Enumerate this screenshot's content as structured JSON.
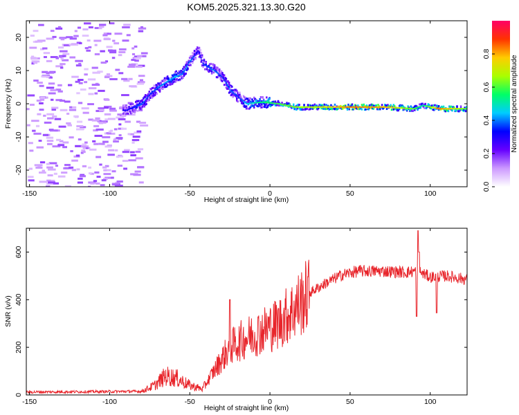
{
  "title": "KOM5.2025.321.13.30.G20",
  "chart_data": [
    {
      "type": "heatmap",
      "name": "spectrogram",
      "xlabel": "Height of straight line (km)",
      "ylabel": "Frequency (Hz)",
      "xlim": [
        -152,
        123
      ],
      "ylim": [
        -25,
        25
      ],
      "xticks": [
        "-150",
        "-100",
        "-50",
        "0",
        "50",
        "100"
      ],
      "yticks": [
        "-20",
        "-10",
        "0",
        "10",
        "20"
      ],
      "colorbar": {
        "label": "Normalized spectral amplitude",
        "range": [
          0,
          1
        ],
        "ticks": [
          "0.0",
          "0.2",
          "0.4",
          "0.6",
          "0.8"
        ],
        "colors": [
          "#ffffff",
          "#cc99ff",
          "#6600ff",
          "#0000ff",
          "#00ccff",
          "#00ff66",
          "#aaff00",
          "#ffcc00",
          "#ff3300",
          "#ff0066"
        ]
      },
      "ridge": [
        {
          "x": -90,
          "f": -2,
          "a": 0.3
        },
        {
          "x": -80,
          "f": 0,
          "a": 0.4
        },
        {
          "x": -75,
          "f": 3,
          "a": 0.35
        },
        {
          "x": -70,
          "f": 5,
          "a": 0.4
        },
        {
          "x": -60,
          "f": 8,
          "a": 0.45
        },
        {
          "x": -55,
          "f": 9,
          "a": 0.4
        },
        {
          "x": -50,
          "f": 13,
          "a": 0.4
        },
        {
          "x": -45,
          "f": 16,
          "a": 0.3
        },
        {
          "x": -42,
          "f": 12,
          "a": 0.35
        },
        {
          "x": -35,
          "f": 10,
          "a": 0.4
        },
        {
          "x": -30,
          "f": 8,
          "a": 0.35
        },
        {
          "x": -25,
          "f": 4,
          "a": 0.4
        },
        {
          "x": -20,
          "f": 2,
          "a": 0.35
        },
        {
          "x": -15,
          "f": 0,
          "a": 0.45
        },
        {
          "x": -5,
          "f": 0.5,
          "a": 0.55
        },
        {
          "x": 5,
          "f": 0,
          "a": 0.6
        },
        {
          "x": 15,
          "f": -1,
          "a": 0.65
        },
        {
          "x": 30,
          "f": -1,
          "a": 0.7
        },
        {
          "x": 50,
          "f": -1,
          "a": 0.85
        },
        {
          "x": 70,
          "f": -1,
          "a": 0.8
        },
        {
          "x": 90,
          "f": -1.5,
          "a": 0.6
        },
        {
          "x": 95,
          "f": -0.5,
          "a": 0.5
        },
        {
          "x": 105,
          "f": -1.5,
          "a": 0.85
        },
        {
          "x": 123,
          "f": -1.5,
          "a": 0.6
        }
      ]
    },
    {
      "type": "line",
      "name": "snr",
      "xlabel": "Height of straight line (km)",
      "ylabel": "SNR (v/v)",
      "xlim": [
        -152,
        123
      ],
      "ylim": [
        0,
        700
      ],
      "xticks": [
        "-150",
        "-100",
        "-50",
        "0",
        "50",
        "100"
      ],
      "yticks": [
        "0",
        "200",
        "400",
        "600"
      ],
      "color": "#e8252b",
      "trend": [
        {
          "x": -152,
          "y": 12
        },
        {
          "x": -80,
          "y": 15
        },
        {
          "x": -72,
          "y": 40
        },
        {
          "x": -65,
          "y": 80
        },
        {
          "x": -58,
          "y": 70
        },
        {
          "x": -50,
          "y": 40
        },
        {
          "x": -42,
          "y": 25
        },
        {
          "x": -35,
          "y": 100
        },
        {
          "x": -25,
          "y": 200
        },
        {
          "x": -15,
          "y": 240
        },
        {
          "x": -5,
          "y": 270
        },
        {
          "x": 5,
          "y": 300
        },
        {
          "x": 15,
          "y": 360
        },
        {
          "x": 25,
          "y": 430
        },
        {
          "x": 35,
          "y": 470
        },
        {
          "x": 45,
          "y": 505
        },
        {
          "x": 55,
          "y": 520
        },
        {
          "x": 70,
          "y": 520
        },
        {
          "x": 85,
          "y": 515
        },
        {
          "x": 92,
          "y": 520
        },
        {
          "x": 100,
          "y": 495
        },
        {
          "x": 110,
          "y": 500
        },
        {
          "x": 123,
          "y": 485
        }
      ],
      "spikes": [
        {
          "x": -25,
          "y": 400
        },
        {
          "x": 91.5,
          "y": 330
        },
        {
          "x": 92.5,
          "y": 690
        },
        {
          "x": 93,
          "y": 600
        },
        {
          "x": 104,
          "y": 345
        }
      ]
    }
  ]
}
